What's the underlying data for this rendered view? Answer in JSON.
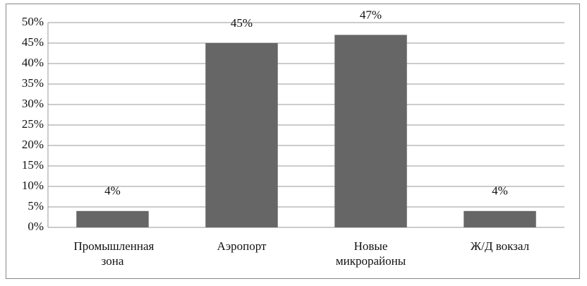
{
  "chart_data": {
    "type": "bar",
    "categories": [
      "Промышленная зона",
      "Аэропорт",
      "Новые микрорайоны",
      "Ж/Д вокзал"
    ],
    "values": [
      4,
      45,
      47,
      4
    ],
    "value_labels": [
      "4%",
      "45%",
      "47%",
      "4%"
    ],
    "color": "#666666",
    "ylim": [
      0,
      50
    ],
    "yticks": [
      {
        "value": 0,
        "label": "0%"
      },
      {
        "value": 5,
        "label": "5%"
      },
      {
        "value": 10,
        "label": "10%"
      },
      {
        "value": 15,
        "label": "15%"
      },
      {
        "value": 20,
        "label": "20%"
      },
      {
        "value": 25,
        "label": "25%"
      },
      {
        "value": 30,
        "label": "30%"
      },
      {
        "value": 35,
        "label": "35%"
      },
      {
        "value": 40,
        "label": "40%"
      },
      {
        "value": 45,
        "label": "45%"
      },
      {
        "value": 50,
        "label": "50%"
      }
    ],
    "grid": true
  }
}
